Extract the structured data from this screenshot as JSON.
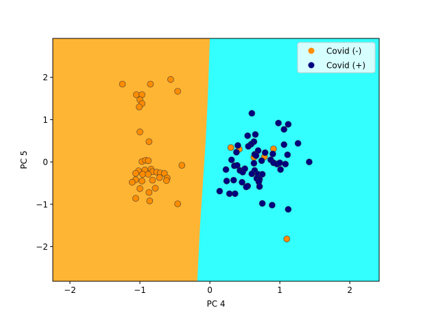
{
  "chart_data": {
    "type": "scatter",
    "xlabel": "PC 4",
    "ylabel": "PC 5",
    "xlim": [
      -2.245,
      2.42
    ],
    "ylim": [
      -2.82,
      2.92
    ],
    "xticks": [
      -2,
      -1,
      0,
      1,
      2
    ],
    "yticks": [
      -2,
      -1,
      0,
      1,
      2
    ],
    "xtick_labels": [
      "−2",
      "−1",
      "0",
      "1",
      "2"
    ],
    "ytick_labels": [
      "−2",
      "−1",
      "0",
      "1",
      "2"
    ],
    "grid": false,
    "legend_position": "top-right",
    "decision_regions": {
      "boundary": [
        [
          0.0,
          2.92
        ],
        [
          -0.03,
          1.5
        ],
        [
          -0.06,
          0.5
        ],
        [
          -0.1,
          -0.5
        ],
        [
          -0.14,
          -1.5
        ],
        [
          -0.18,
          -2.82
        ]
      ],
      "left_region_color": "#FFB534",
      "right_region_color": "#33FFFF"
    },
    "series": [
      {
        "name": "Covid (-)",
        "color": "#FF8C00",
        "points": [
          [
            -1.25,
            1.84
          ],
          [
            -0.85,
            1.84
          ],
          [
            -0.56,
            1.95
          ],
          [
            -0.46,
            1.67
          ],
          [
            -1.05,
            1.59
          ],
          [
            -0.97,
            1.59
          ],
          [
            -1.0,
            1.47
          ],
          [
            -0.97,
            1.38
          ],
          [
            -1.01,
            1.3
          ],
          [
            -1.0,
            0.71
          ],
          [
            -0.87,
            0.48
          ],
          [
            -0.4,
            -0.08
          ],
          [
            -0.97,
            0.01
          ],
          [
            -0.92,
            0.04
          ],
          [
            -0.88,
            0.03
          ],
          [
            -1.02,
            -0.21
          ],
          [
            -1.06,
            -0.27
          ],
          [
            -0.93,
            -0.19
          ],
          [
            -0.84,
            -0.17
          ],
          [
            -0.82,
            -0.23
          ],
          [
            -0.76,
            -0.24
          ],
          [
            -0.71,
            -0.26
          ],
          [
            -0.65,
            -0.27
          ],
          [
            -0.96,
            -0.29
          ],
          [
            -0.88,
            -0.29
          ],
          [
            -0.61,
            -0.38
          ],
          [
            -0.62,
            -0.44
          ],
          [
            -0.72,
            -0.37
          ],
          [
            -0.82,
            -0.43
          ],
          [
            -0.97,
            -0.45
          ],
          [
            -1.06,
            -0.42
          ],
          [
            -1.11,
            -0.48
          ],
          [
            -1.0,
            -0.63
          ],
          [
            -0.78,
            -0.62
          ],
          [
            -0.87,
            -0.72
          ],
          [
            -1.06,
            -0.86
          ],
          [
            -0.86,
            -0.92
          ],
          [
            -0.46,
            -0.99
          ],
          [
            0.3,
            0.34
          ],
          [
            0.42,
            0.3
          ],
          [
            0.91,
            0.31
          ],
          [
            0.63,
            0.11
          ],
          [
            0.78,
            0.12
          ],
          [
            1.1,
            -1.82
          ]
        ]
      },
      {
        "name": "Covid (+)",
        "color": "#000080",
        "points": [
          [
            0.6,
            1.15
          ],
          [
            0.98,
            0.92
          ],
          [
            1.12,
            0.89
          ],
          [
            1.06,
            0.77
          ],
          [
            0.54,
            0.62
          ],
          [
            0.65,
            0.65
          ],
          [
            0.63,
            0.48
          ],
          [
            0.59,
            0.42
          ],
          [
            0.55,
            0.37
          ],
          [
            0.4,
            0.39
          ],
          [
            0.38,
            0.23
          ],
          [
            1.06,
            0.41
          ],
          [
            1.26,
            0.44
          ],
          [
            0.69,
            0.27
          ],
          [
            0.64,
            0.18
          ],
          [
            0.66,
            0.15
          ],
          [
            0.79,
            0.22
          ],
          [
            0.9,
            0.19
          ],
          [
            1.11,
            0.17
          ],
          [
            0.31,
            0.05
          ],
          [
            0.74,
            0.03
          ],
          [
            0.87,
            0.05
          ],
          [
            0.91,
            -0.02
          ],
          [
            0.96,
            -0.05
          ],
          [
            1.0,
            -0.02
          ],
          [
            1.08,
            -0.05
          ],
          [
            1.01,
            -0.18
          ],
          [
            1.42,
            0.0
          ],
          [
            0.63,
            -0.03
          ],
          [
            0.35,
            -0.09
          ],
          [
            0.39,
            -0.08
          ],
          [
            0.23,
            -0.18
          ],
          [
            0.43,
            -0.2
          ],
          [
            0.47,
            -0.24
          ],
          [
            0.5,
            -0.16
          ],
          [
            0.64,
            -0.2
          ],
          [
            0.6,
            -0.28
          ],
          [
            0.69,
            -0.29
          ],
          [
            0.75,
            -0.29
          ],
          [
            0.67,
            -0.39
          ],
          [
            0.71,
            -0.41
          ],
          [
            0.7,
            -0.47
          ],
          [
            0.24,
            -0.45
          ],
          [
            0.34,
            -0.43
          ],
          [
            0.46,
            -0.48
          ],
          [
            0.54,
            -0.57
          ],
          [
            0.52,
            -0.59
          ],
          [
            0.71,
            -0.58
          ],
          [
            0.14,
            -0.69
          ],
          [
            0.28,
            -0.75
          ],
          [
            0.36,
            -0.75
          ],
          [
            0.75,
            -0.98
          ],
          [
            0.89,
            -1.02
          ],
          [
            1.12,
            -1.12
          ]
        ]
      }
    ]
  }
}
